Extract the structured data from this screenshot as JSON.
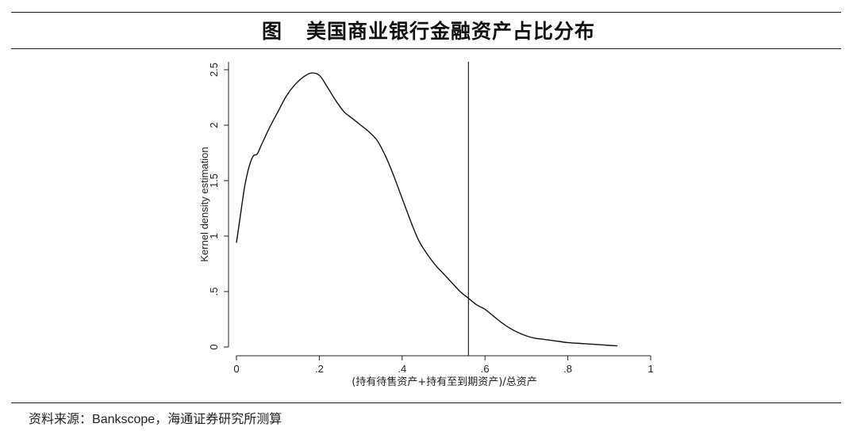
{
  "figure_label": "图",
  "figure_title": "美国商业银行金融资产占比分布",
  "source": {
    "prefix": "资料来源：",
    "dataset": "Bankscope",
    "suffix": "，海通证券研究所测算"
  },
  "chart_data": {
    "type": "line",
    "xlabel": "(持有待售资产+持有至到期资产)/总资产",
    "ylabel": "Kernel density estimation",
    "xlim": [
      0,
      1
    ],
    "ylim": [
      0,
      2.5
    ],
    "x_ticks": [
      "0",
      ".2",
      ".4",
      ".6",
      ".8",
      "1"
    ],
    "y_ticks": [
      "0",
      ".5",
      "1",
      "1.5",
      "2",
      "2.5"
    ],
    "grid": false,
    "reference_line_x": 0.56,
    "series": [
      {
        "x": [
          0.0,
          0.01,
          0.02,
          0.03,
          0.04,
          0.05,
          0.06,
          0.08,
          0.1,
          0.12,
          0.14,
          0.16,
          0.18,
          0.2,
          0.22,
          0.24,
          0.26,
          0.28,
          0.3,
          0.32,
          0.34,
          0.36,
          0.38,
          0.4,
          0.42,
          0.44,
          0.46,
          0.48,
          0.5,
          0.52,
          0.54,
          0.56,
          0.58,
          0.6,
          0.62,
          0.64,
          0.66,
          0.68,
          0.7,
          0.72,
          0.74,
          0.76,
          0.78,
          0.8,
          0.84,
          0.88,
          0.92
        ],
        "y": [
          0.94,
          1.2,
          1.45,
          1.62,
          1.72,
          1.74,
          1.82,
          1.98,
          2.12,
          2.26,
          2.36,
          2.43,
          2.47,
          2.45,
          2.34,
          2.22,
          2.12,
          2.06,
          2.0,
          1.94,
          1.86,
          1.72,
          1.54,
          1.34,
          1.14,
          0.96,
          0.84,
          0.74,
          0.66,
          0.58,
          0.5,
          0.44,
          0.38,
          0.34,
          0.28,
          0.22,
          0.17,
          0.13,
          0.1,
          0.08,
          0.07,
          0.06,
          0.05,
          0.04,
          0.03,
          0.02,
          0.01
        ]
      }
    ]
  }
}
